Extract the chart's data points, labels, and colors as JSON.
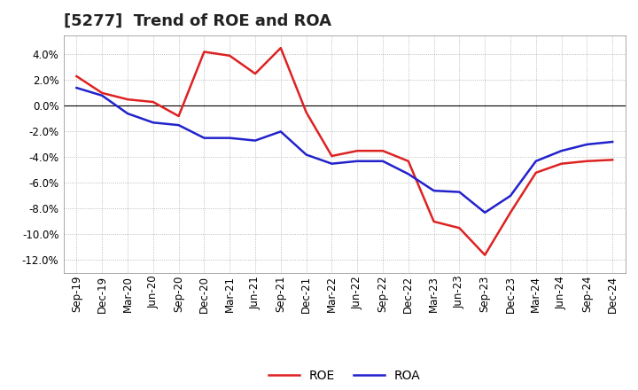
{
  "title": "[5277]  Trend of ROE and ROA",
  "x_labels": [
    "Sep-19",
    "Dec-19",
    "Mar-20",
    "Jun-20",
    "Sep-20",
    "Dec-20",
    "Mar-21",
    "Jun-21",
    "Sep-21",
    "Dec-21",
    "Mar-22",
    "Jun-22",
    "Sep-22",
    "Dec-22",
    "Mar-23",
    "Jun-23",
    "Sep-23",
    "Dec-23",
    "Mar-24",
    "Jun-24",
    "Sep-24",
    "Dec-24"
  ],
  "roe": [
    2.3,
    1.0,
    0.5,
    0.3,
    -0.8,
    4.2,
    3.9,
    2.5,
    4.5,
    -0.5,
    -3.9,
    -3.5,
    -3.5,
    -4.3,
    -9.0,
    -9.5,
    -11.6,
    -8.3,
    -5.2,
    -4.5,
    -4.3,
    -4.2
  ],
  "roa": [
    1.4,
    0.8,
    -0.6,
    -1.3,
    -1.5,
    -2.5,
    -2.5,
    -2.7,
    -2.0,
    -3.8,
    -4.5,
    -4.3,
    -4.3,
    -5.3,
    -6.6,
    -6.7,
    -8.3,
    -7.0,
    -4.3,
    -3.5,
    -3.0,
    -2.8
  ],
  "roe_color": "#dd2222",
  "roa_color": "#2222cc",
  "background_color": "#ffffff",
  "plot_bg_color": "#ffffff",
  "grid_color": "#aaaaaa",
  "ylim": [
    -13.0,
    5.5
  ],
  "yticks": [
    -12.0,
    -10.0,
    -8.0,
    -6.0,
    -4.0,
    -2.0,
    0.0,
    2.0,
    4.0
  ],
  "title_fontsize": 13,
  "axis_fontsize": 8.5,
  "legend_fontsize": 10
}
